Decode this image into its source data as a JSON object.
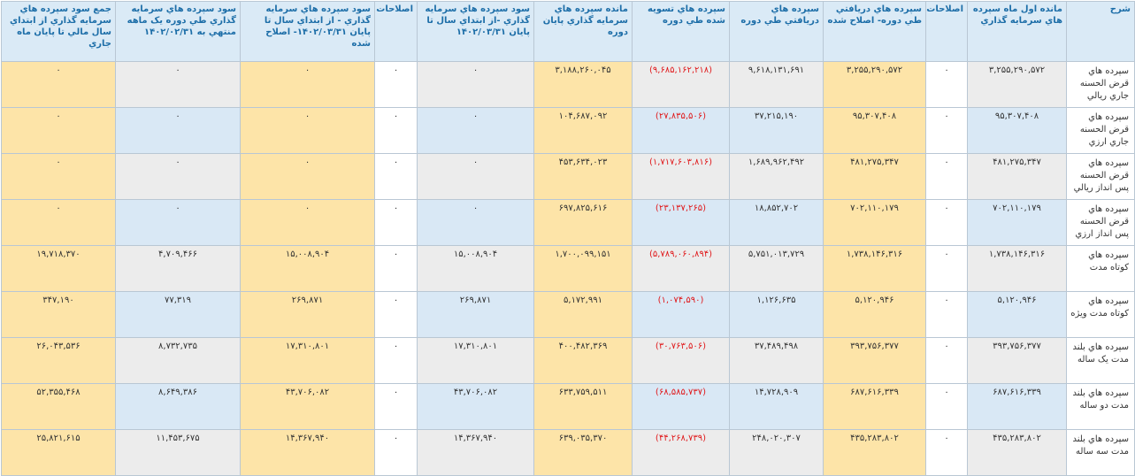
{
  "headers": [
    "شرح",
    "مانده اول ماه سپرده هاي سرمايه گذاري",
    "اصلاحات",
    "سپرده هاي دريافتي طي دوره- اصلاح شده",
    "سپرده هاي دريافتي طي دوره",
    "سپرده هاي تسويه شده طي دوره",
    "مانده سپرده هاي سرمايه گذاري پايان دوره",
    "سود سپرده هاي سرمايه گذاري -از ابتداي سال تا پايان ۱۴۰۲/۰۳/۳۱",
    "اصلاحات",
    "سود سپرده هاي سرمايه گذاري - از ابتداي سال تا پايان ۱۴۰۲/۰۳/۳۱- اصلاح شده",
    "سود سپرده هاي سرمايه گذاري طي دوره يک ماهه منتهي به ۱۴۰۲/۰۲/۳۱",
    "جمع سود سپرده هاي سرمايه گذاري از ابتداي سال مالي تا پايان ماه جاري"
  ],
  "rows": [
    {
      "label": "سپرده هاي قرض الحسنه جاري ريالي",
      "opening": "۳,۲۵۵,۲۹۰,۵۷۲",
      "adjust": "۰",
      "received_adj": "۳,۲۵۵,۲۹۰,۵۷۲",
      "received": "۹,۶۱۸,۱۳۱,۶۹۱",
      "settled": "(۹,۶۸۵,۱۶۲,۲۱۸)",
      "closing": "۳,۱۸۸,۲۶۰,۰۴۵",
      "profit_ytd": "۰",
      "adjust2": "۰",
      "profit_ytd_adj": "۰",
      "profit_month": "۰",
      "profit_total": "۰"
    },
    {
      "label": "سپرده هاي قرض الحسنه جاري ارزي",
      "opening": "۹۵,۳۰۷,۴۰۸",
      "adjust": "۰",
      "received_adj": "۹۵,۳۰۷,۴۰۸",
      "received": "۳۷,۲۱۵,۱۹۰",
      "settled": "(۲۷,۸۳۵,۵۰۶)",
      "closing": "۱۰۴,۶۸۷,۰۹۲",
      "profit_ytd": "۰",
      "adjust2": "۰",
      "profit_ytd_adj": "۰",
      "profit_month": "۰",
      "profit_total": "۰"
    },
    {
      "label": "سپرده هاي قرض الحسنه پس انداز ريالي",
      "opening": "۴۸۱,۲۷۵,۳۴۷",
      "adjust": "۰",
      "received_adj": "۴۸۱,۲۷۵,۳۴۷",
      "received": "۱,۶۸۹,۹۶۲,۴۹۲",
      "settled": "(۱,۷۱۷,۶۰۳,۸۱۶)",
      "closing": "۴۵۳,۶۳۴,۰۲۳",
      "profit_ytd": "۰",
      "adjust2": "۰",
      "profit_ytd_adj": "۰",
      "profit_month": "۰",
      "profit_total": "۰"
    },
    {
      "label": "سپرده هاي قرض الحسنه پس انداز ارزي",
      "opening": "۷۰۲,۱۱۰,۱۷۹",
      "adjust": "۰",
      "received_adj": "۷۰۲,۱۱۰,۱۷۹",
      "received": "۱۸,۸۵۲,۷۰۲",
      "settled": "(۲۳,۱۳۷,۲۶۵)",
      "closing": "۶۹۷,۸۲۵,۶۱۶",
      "profit_ytd": "۰",
      "adjust2": "۰",
      "profit_ytd_adj": "۰",
      "profit_month": "۰",
      "profit_total": "۰"
    },
    {
      "label": "سپرده هاي کوتاه مدت",
      "opening": "۱,۷۳۸,۱۴۶,۳۱۶",
      "adjust": "۰",
      "received_adj": "۱,۷۳۸,۱۴۶,۳۱۶",
      "received": "۵,۷۵۱,۰۱۳,۷۲۹",
      "settled": "(۵,۷۸۹,۰۶۰,۸۹۴)",
      "closing": "۱,۷۰۰,۰۹۹,۱۵۱",
      "profit_ytd": "۱۵,۰۰۸,۹۰۴",
      "adjust2": "۰",
      "profit_ytd_adj": "۱۵,۰۰۸,۹۰۴",
      "profit_month": "۴,۷۰۹,۴۶۶",
      "profit_total": "۱۹,۷۱۸,۳۷۰"
    },
    {
      "label": "سپرده هاي کوتاه مدت ويژه",
      "opening": "۵,۱۲۰,۹۴۶",
      "adjust": "۰",
      "received_adj": "۵,۱۲۰,۹۴۶",
      "received": "۱,۱۲۶,۶۳۵",
      "settled": "(۱,۰۷۴,۵۹۰)",
      "closing": "۵,۱۷۲,۹۹۱",
      "profit_ytd": "۲۶۹,۸۷۱",
      "adjust2": "۰",
      "profit_ytd_adj": "۲۶۹,۸۷۱",
      "profit_month": "۷۷,۳۱۹",
      "profit_total": "۳۴۷,۱۹۰"
    },
    {
      "label": "سپرده هاي بلند مدت يک ساله",
      "opening": "۳۹۳,۷۵۶,۳۷۷",
      "adjust": "۰",
      "received_adj": "۳۹۳,۷۵۶,۳۷۷",
      "received": "۳۷,۴۸۹,۴۹۸",
      "settled": "(۳۰,۷۶۳,۵۰۶)",
      "closing": "۴۰۰,۴۸۲,۳۶۹",
      "profit_ytd": "۱۷,۳۱۰,۸۰۱",
      "adjust2": "۰",
      "profit_ytd_adj": "۱۷,۳۱۰,۸۰۱",
      "profit_month": "۸,۷۳۲,۷۳۵",
      "profit_total": "۲۶,۰۴۳,۵۳۶"
    },
    {
      "label": "سپرده هاي بلند مدت دو ساله",
      "opening": "۶۸۷,۶۱۶,۳۳۹",
      "adjust": "۰",
      "received_adj": "۶۸۷,۶۱۶,۳۳۹",
      "received": "۱۴,۷۲۸,۹۰۹",
      "settled": "(۶۸,۵۸۵,۷۳۷)",
      "closing": "۶۳۳,۷۵۹,۵۱۱",
      "profit_ytd": "۴۳,۷۰۶,۰۸۲",
      "adjust2": "۰",
      "profit_ytd_adj": "۴۳,۷۰۶,۰۸۲",
      "profit_month": "۸,۶۴۹,۳۸۶",
      "profit_total": "۵۲,۳۵۵,۴۶۸"
    },
    {
      "label": "سپرده هاي بلند مدت سه ساله",
      "opening": "۴۳۵,۲۸۳,۸۰۲",
      "adjust": "۰",
      "received_adj": "۴۳۵,۲۸۳,۸۰۲",
      "received": "۲۴۸,۰۲۰,۳۰۷",
      "settled": "(۴۴,۲۶۸,۷۳۹)",
      "closing": "۶۳۹,۰۳۵,۳۷۰",
      "profit_ytd": "۱۴,۳۶۷,۹۴۰",
      "adjust2": "۰",
      "profit_ytd_adj": "۱۴,۳۶۷,۹۴۰",
      "profit_month": "۱۱,۴۵۳,۶۷۵",
      "profit_total": "۲۵,۸۲۱,۶۱۵"
    }
  ]
}
